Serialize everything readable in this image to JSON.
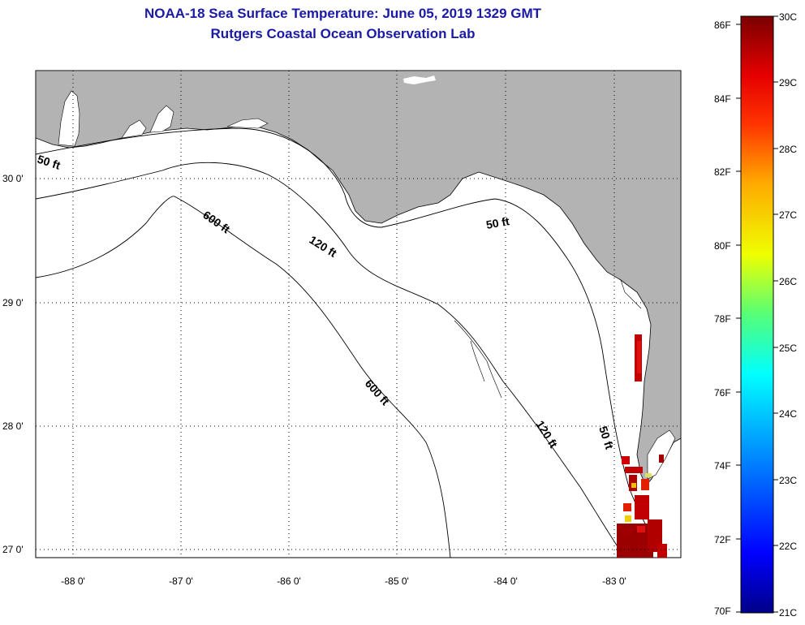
{
  "header": {
    "title": "NOAA-18 Sea Surface Temperature:  June 05, 2019 1329 GMT",
    "subtitle": "Rutgers Coastal Ocean Observation Lab"
  },
  "map": {
    "lon_ticks": [
      "-88 0'",
      "-87 0'",
      "-86 0'",
      "-85 0'",
      "-84 0'",
      "-83 0'"
    ],
    "lat_ticks": [
      "30 0'",
      "29 0'",
      "28 0'",
      "27 0'"
    ],
    "contour_labels": [
      "50 ft",
      "50 ft",
      "50 ft",
      "120 ft",
      "120 ft",
      "600 ft",
      "600 ft"
    ],
    "colors": {
      "land": "#b3b3b3",
      "water": "#ffffff",
      "sst_warm": "#a30000",
      "sst_hot": "#e00000"
    }
  },
  "colorbar": {
    "fahrenheit_labels": [
      "86F",
      "84F",
      "82F",
      "80F",
      "78F",
      "76F",
      "74F",
      "72F",
      "70F"
    ],
    "celsius_labels": [
      "30C",
      "29C",
      "28C",
      "27C",
      "26C",
      "25C",
      "24C",
      "23C",
      "22C",
      "21C"
    ]
  }
}
